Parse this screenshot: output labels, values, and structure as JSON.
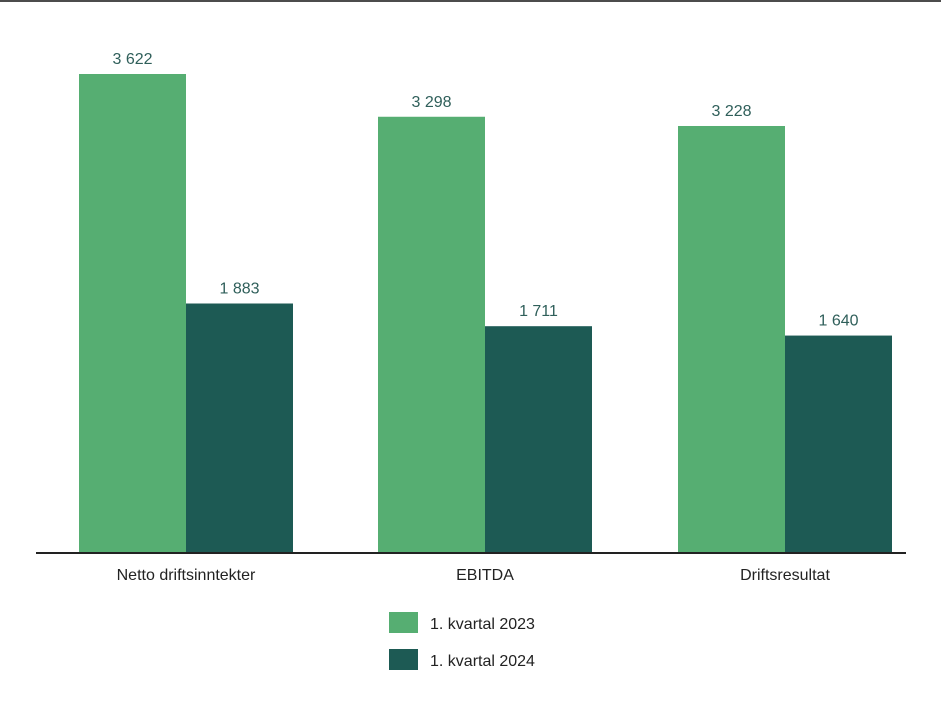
{
  "chart_data": {
    "type": "bar",
    "title": "",
    "xlabel": "",
    "ylabel": "",
    "categories": [
      "Netto driftsinntekter",
      "EBITDA",
      "Driftsresultat"
    ],
    "series": [
      {
        "name": "1. kvartal 2023",
        "color": "#56AE72",
        "values": [
          3622,
          3298,
          3228
        ],
        "labels": [
          "3 622",
          "3 298",
          "3 228"
        ]
      },
      {
        "name": "1. kvartal 2024",
        "color": "#1D5A54",
        "values": [
          1883,
          1711,
          1640
        ],
        "labels": [
          "1 883",
          "1 711",
          "1 640"
        ]
      }
    ],
    "ylim": [
      0,
      3622
    ],
    "grid": false,
    "legend_position": "bottom-center",
    "label_color": "#2F5F5A",
    "axis_color": "#222222"
  }
}
